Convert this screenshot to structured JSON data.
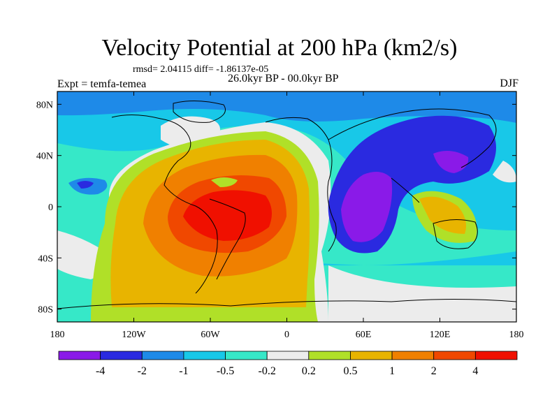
{
  "title": "Velocity Potential at 200 hPa (km2/s)",
  "stats": "rmsd= 2.04115 diff= -1.86137e-05",
  "left_label": "Expt = temfa-temea",
  "center_label": "26.0kyr BP - 00.0kyr BP",
  "right_label": "DJF",
  "chart_data": {
    "type": "heatmap",
    "title": "Velocity Potential at 200 hPa (km2/s)",
    "xlim": [
      -180,
      180
    ],
    "ylim": [
      -90,
      90
    ],
    "x_ticks": [
      {
        "value": -180,
        "label": "180"
      },
      {
        "value": -120,
        "label": "120W"
      },
      {
        "value": -60,
        "label": "60W"
      },
      {
        "value": 0,
        "label": "0"
      },
      {
        "value": 60,
        "label": "60E"
      },
      {
        "value": 120,
        "label": "120E"
      },
      {
        "value": 180,
        "label": "180"
      }
    ],
    "y_ticks": [
      {
        "value": 80,
        "label": "80N"
      },
      {
        "value": 40,
        "label": "40N"
      },
      {
        "value": 0,
        "label": "0"
      },
      {
        "value": -40,
        "label": "40S"
      },
      {
        "value": -80,
        "label": "80S"
      }
    ],
    "colorbar": {
      "levels": [
        -4,
        -2,
        -1,
        -0.5,
        -0.2,
        0.2,
        0.5,
        1,
        2,
        4
      ],
      "labels": [
        "-4",
        "-2",
        "-1",
        "-0.5",
        "-0.2",
        "0.2",
        "0.5",
        "1",
        "2",
        "4"
      ],
      "colors": [
        "#8a1ae8",
        "#2a2ae0",
        "#1e8ae8",
        "#18c8e8",
        "#36e8c8",
        "#ececec",
        "#b0e028",
        "#e8b400",
        "#f08000",
        "#f04800",
        "#f01000"
      ]
    }
  }
}
